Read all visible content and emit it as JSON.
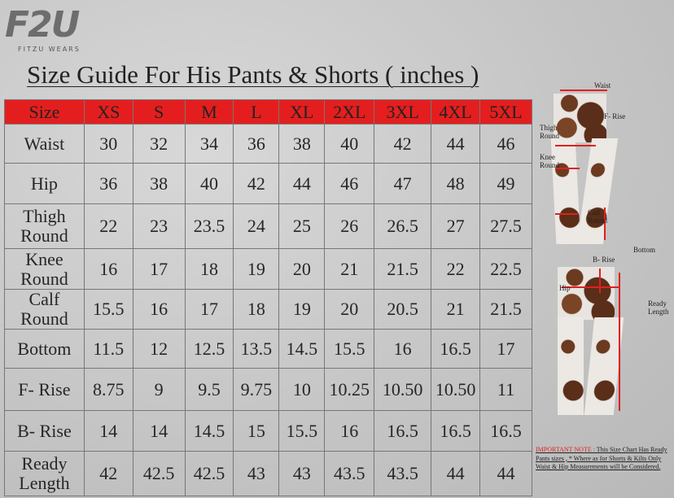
{
  "logo": {
    "mark": "F2U",
    "tagline": "FITZU WEARS"
  },
  "title": "Size Guide For His Pants & Shorts ( inches )",
  "table": {
    "headers": [
      "Size",
      "XS",
      "S",
      "M",
      "L",
      "XL",
      "2XL",
      "3XL",
      "4XL",
      "5XL"
    ],
    "rows": [
      {
        "label": [
          "Waist"
        ],
        "values": [
          "30",
          "32",
          "34",
          "36",
          "38",
          "40",
          "42",
          "44",
          "46"
        ]
      },
      {
        "label": [
          "Hip"
        ],
        "values": [
          "36",
          "38",
          "40",
          "42",
          "44",
          "46",
          "47",
          "48",
          "49"
        ]
      },
      {
        "label": [
          "Thigh",
          "Round"
        ],
        "values": [
          "22",
          "23",
          "23.5",
          "24",
          "25",
          "26",
          "26.5",
          "27",
          "27.5"
        ]
      },
      {
        "label": [
          "Knee",
          "Round"
        ],
        "values": [
          "16",
          "17",
          "18",
          "19",
          "20",
          "21",
          "21.5",
          "22",
          "22.5"
        ]
      },
      {
        "label": [
          "Calf",
          "Round"
        ],
        "values": [
          "15.5",
          "16",
          "17",
          "18",
          "19",
          "20",
          "20.5",
          "21",
          "21.5"
        ]
      },
      {
        "label": [
          "Bottom"
        ],
        "values": [
          "11.5",
          "12",
          "12.5",
          "13.5",
          "14.5",
          "15.5",
          "16",
          "16.5",
          "17"
        ]
      },
      {
        "label": [
          "F- Rise"
        ],
        "values": [
          "8.75",
          "9",
          "9.5",
          "9.75",
          "10",
          "10.25",
          "10.50",
          "10.50",
          "11"
        ]
      },
      {
        "label": [
          "B- Rise"
        ],
        "values": [
          "14",
          "14",
          "14.5",
          "15",
          "15.5",
          "16",
          "16.5",
          "16.5",
          "16.5"
        ]
      },
      {
        "label": [
          "Ready",
          "Length"
        ],
        "values": [
          "42",
          "42.5",
          "42.5",
          "43",
          "43",
          "43.5",
          "43.5",
          "44",
          "44"
        ]
      }
    ]
  },
  "diagram": {
    "front": {
      "waist": "Waist",
      "f_rise": "F- Rise",
      "thigh": "Thigh Round",
      "knee": "Knee Round",
      "calf": "Calf Round",
      "bottom": "Bottom"
    },
    "back": {
      "b_rise": "B- Rise",
      "hip": "Hip",
      "ready_length": "Ready Length"
    }
  },
  "note": {
    "label": "IMPORTANT NOTE :",
    "text": " This Size Chart Has Ready Pants sizes , * Where as for Shorts & Kilts Only Waist & Hip Measurements will be Considered."
  },
  "colors": {
    "header": "#e41e1e",
    "measure_line": "#e02020"
  }
}
